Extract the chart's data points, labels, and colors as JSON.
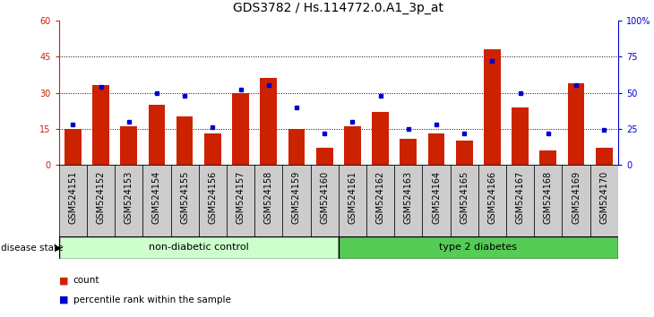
{
  "title": "GDS3782 / Hs.114772.0.A1_3p_at",
  "samples": [
    "GSM524151",
    "GSM524152",
    "GSM524153",
    "GSM524154",
    "GSM524155",
    "GSM524156",
    "GSM524157",
    "GSM524158",
    "GSM524159",
    "GSM524160",
    "GSM524161",
    "GSM524162",
    "GSM524163",
    "GSM524164",
    "GSM524165",
    "GSM524166",
    "GSM524167",
    "GSM524168",
    "GSM524169",
    "GSM524170"
  ],
  "counts": [
    15,
    33,
    16,
    25,
    20,
    13,
    30,
    36,
    15,
    7,
    16,
    22,
    11,
    13,
    10,
    48,
    24,
    6,
    34,
    7
  ],
  "percentiles": [
    28,
    54,
    30,
    50,
    48,
    26,
    52,
    55,
    40,
    22,
    30,
    48,
    25,
    28,
    22,
    72,
    50,
    22,
    55,
    24
  ],
  "ylim_left": [
    0,
    60
  ],
  "ylim_right": [
    0,
    100
  ],
  "yticks_left": [
    0,
    15,
    30,
    45,
    60
  ],
  "yticks_right": [
    0,
    25,
    50,
    75,
    100
  ],
  "bar_color": "#cc2200",
  "dot_color": "#0000cc",
  "bg_color": "#ffffff",
  "xtick_bg": "#cccccc",
  "group1_label": "non-diabetic control",
  "group2_label": "type 2 diabetes",
  "group1_color": "#ccffcc",
  "group2_color": "#55cc55",
  "group1_count": 10,
  "group2_count": 10,
  "left_axis_color": "#cc2200",
  "right_axis_color": "#0000cc",
  "legend_count_label": "count",
  "legend_pct_label": "percentile rank within the sample",
  "title_fontsize": 10,
  "tick_fontsize": 7,
  "bar_width": 0.6
}
